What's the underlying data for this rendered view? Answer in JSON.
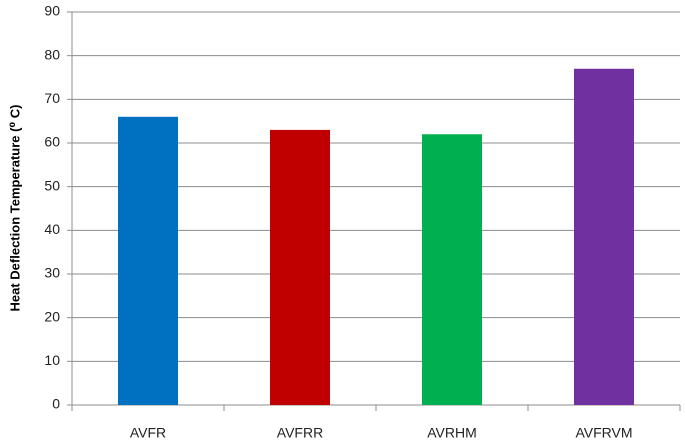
{
  "chart_data": {
    "type": "bar",
    "y_label": "Heat Deflection Temperature (⁰ C)",
    "categories": [
      "AVFR",
      "AVFRR",
      "AVRHM",
      "AVFRVM"
    ],
    "values": [
      66,
      63,
      62,
      77
    ],
    "colors": [
      "#0070c0",
      "#c00000",
      "#00b050",
      "#7030a0"
    ],
    "ylim": [
      0,
      90
    ],
    "yticks": [
      0,
      10,
      20,
      30,
      40,
      50,
      60,
      70,
      80,
      90
    ],
    "grid": true
  }
}
